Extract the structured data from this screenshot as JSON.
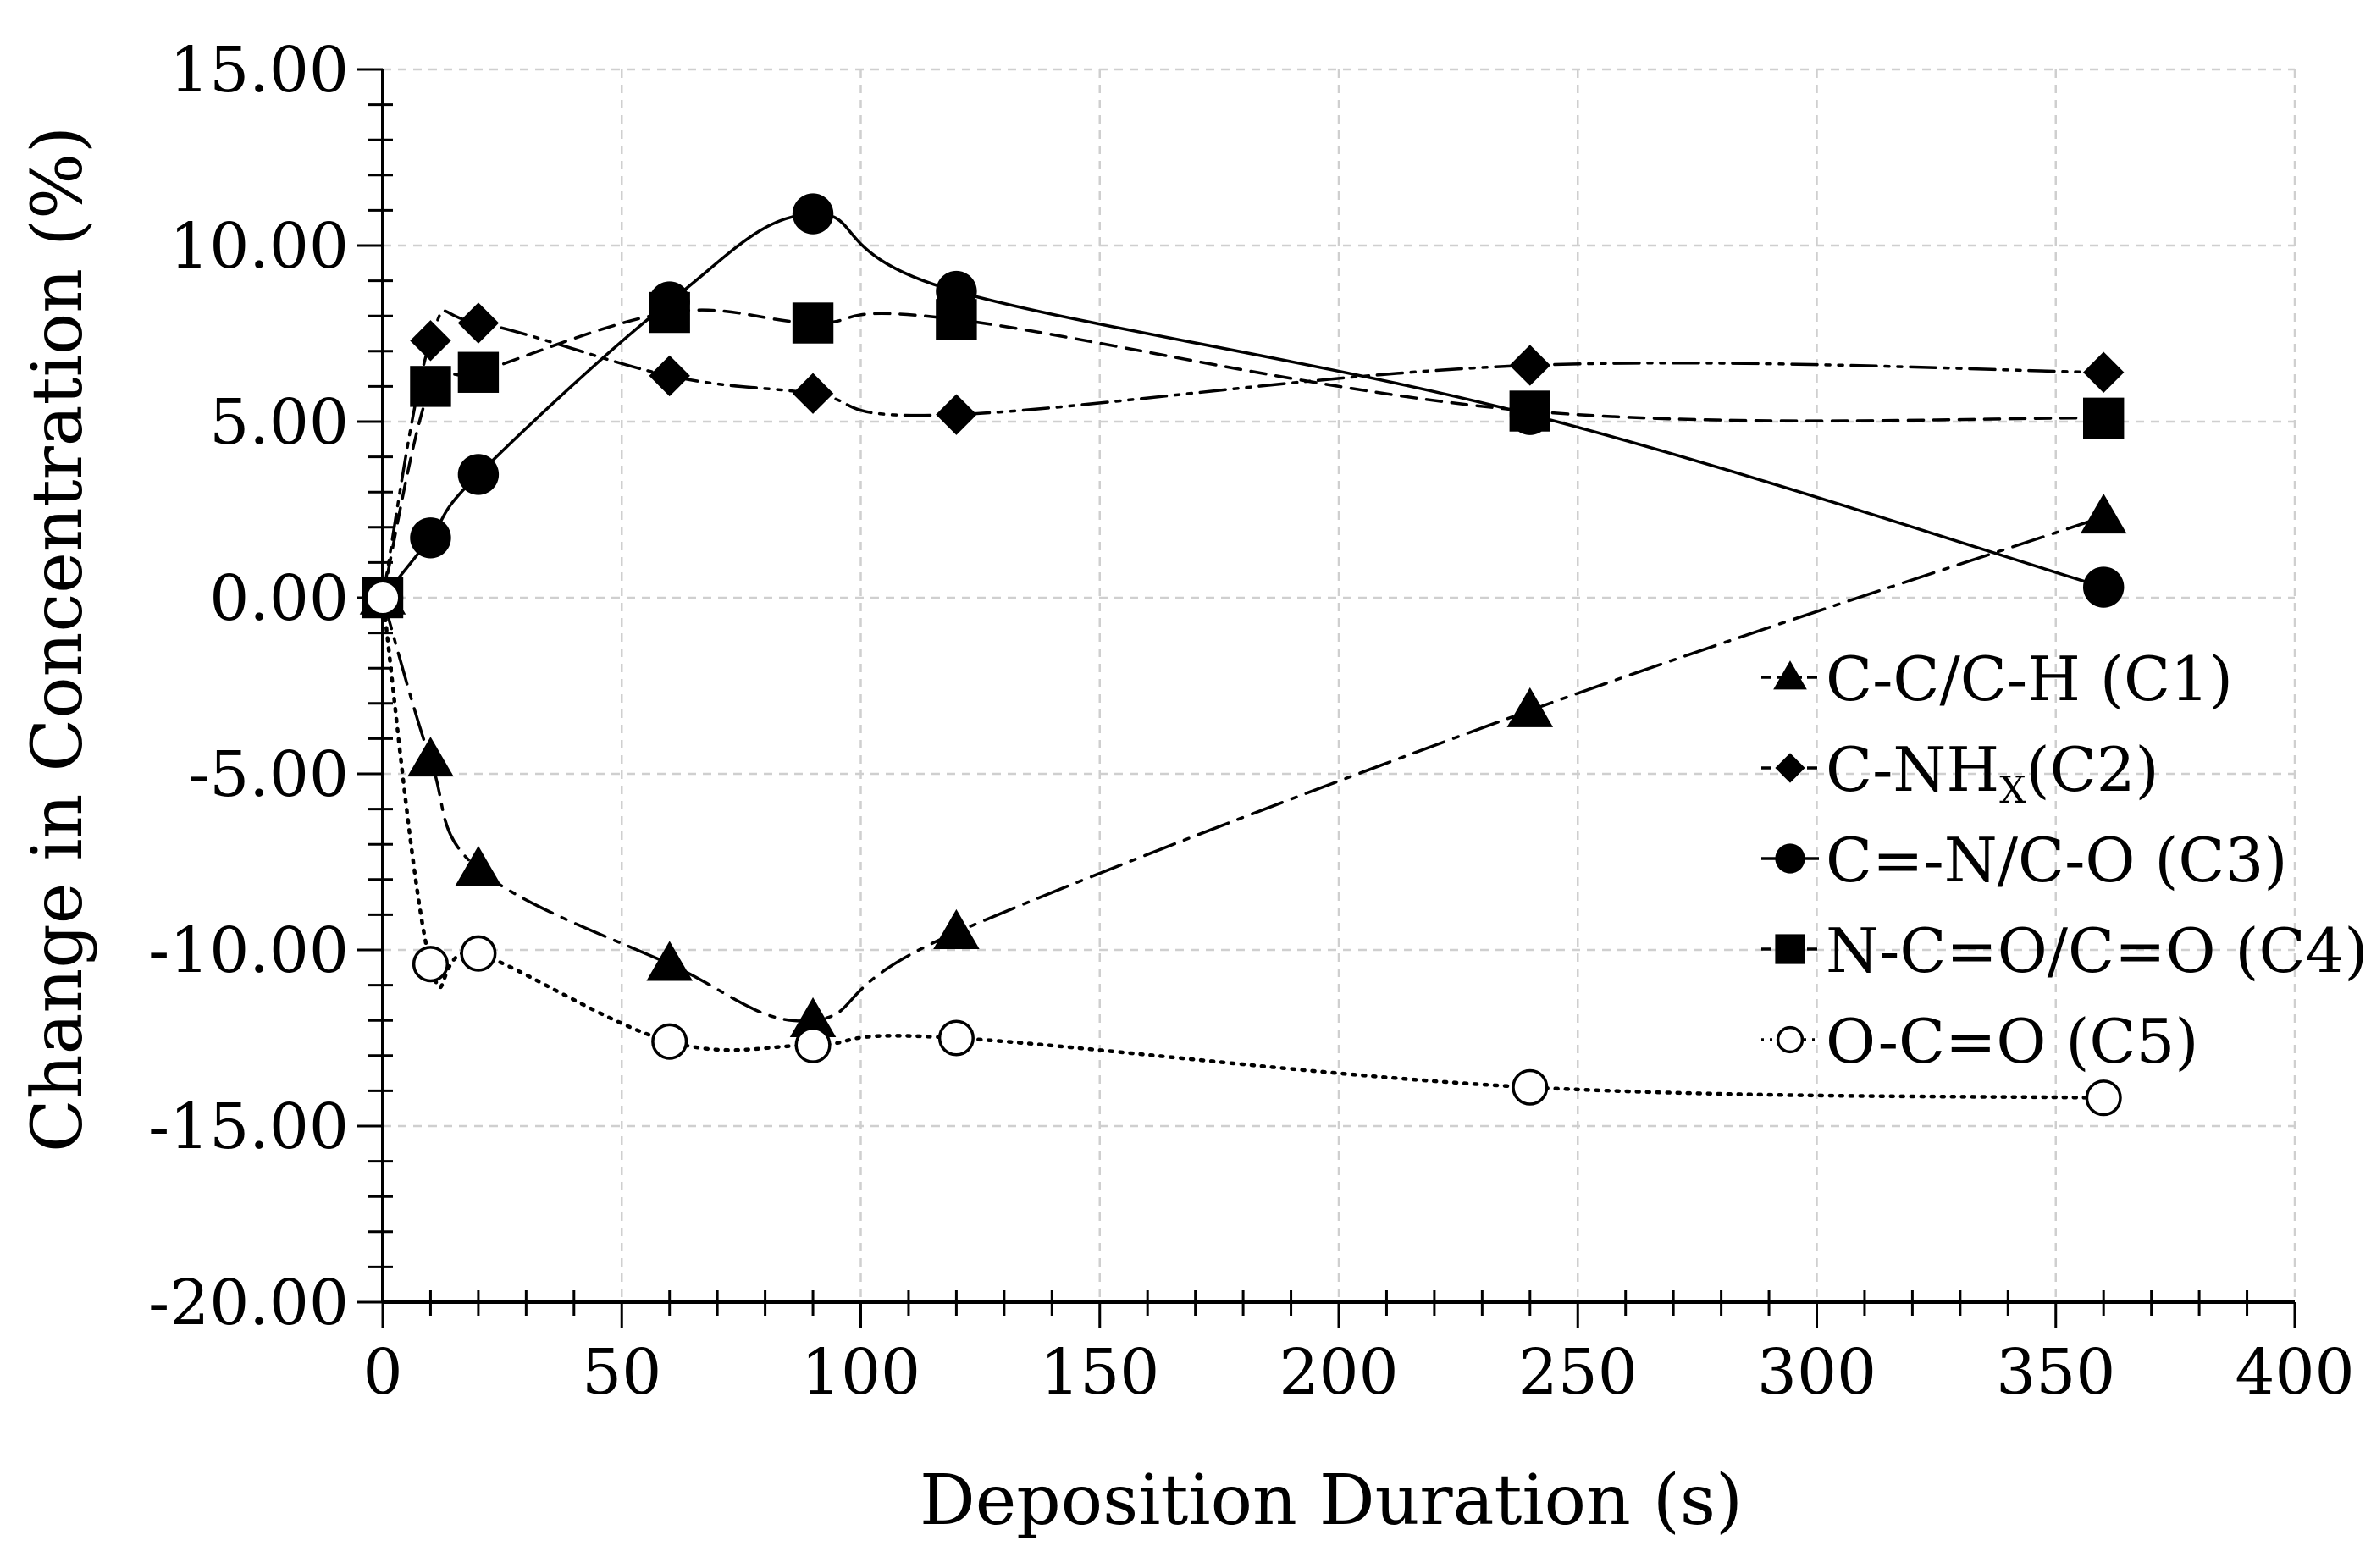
{
  "chart_data": {
    "type": "line",
    "title": "",
    "xlabel": "Deposition Duration (s)",
    "ylabel": "Change in Concentration (%)",
    "xlim": [
      0,
      400
    ],
    "ylim": [
      -20,
      15
    ],
    "x_ticks": [
      0,
      50,
      100,
      150,
      200,
      250,
      300,
      350,
      400
    ],
    "y_ticks": [
      15,
      10,
      5,
      0,
      -5,
      -10,
      -15,
      -20
    ],
    "x_tick_labels": [
      "0",
      "50",
      "100",
      "150",
      "200",
      "250",
      "300",
      "350",
      "400"
    ],
    "y_tick_labels": [
      "15.00",
      "10.00",
      "5.00",
      "0.00",
      "-5.00",
      "-10.00",
      "-15.00",
      "-20.00"
    ],
    "grid": true,
    "legend_position": "right-middle",
    "x": [
      0,
      10,
      20,
      60,
      90,
      120,
      240,
      360
    ],
    "series": [
      {
        "name": "C-C/C-H (C1)",
        "legend_main": "C-C/C-H (C1)",
        "legend_sub": "",
        "legend_tail": "",
        "marker": "triangle",
        "line": "dashdot",
        "values": [
          0,
          -4.6,
          -7.7,
          -10.4,
          -12.0,
          -9.5,
          -3.2,
          2.3
        ]
      },
      {
        "name": "C-NHx(C2)",
        "legend_main": "C-NH",
        "legend_sub": "X",
        "legend_tail": "(C2)",
        "marker": "diamond",
        "line": "dashdotdot",
        "values": [
          0,
          7.3,
          7.8,
          6.3,
          5.8,
          5.2,
          6.6,
          6.4
        ]
      },
      {
        "name": "C=-N/C-O (C3)",
        "legend_main": "C=-N/C-O (C3)",
        "legend_sub": "",
        "legend_tail": "",
        "marker": "circle",
        "line": "solid",
        "values": [
          0,
          1.7,
          3.5,
          8.4,
          10.9,
          8.7,
          5.2,
          0.3
        ]
      },
      {
        "name": "N-C=O/C=O (C4)",
        "legend_main": "N-C=O/C=O (C4)",
        "legend_sub": "",
        "legend_tail": "",
        "marker": "square",
        "line": "dashed",
        "values": [
          0,
          6.0,
          6.4,
          8.1,
          7.8,
          7.9,
          5.3,
          5.1
        ]
      },
      {
        "name": "O-C=O (C5)",
        "legend_main": "O-C=O (C5)",
        "legend_sub": "",
        "legend_tail": "",
        "marker": "open-circle",
        "line": "dotted",
        "values": [
          0,
          -10.4,
          -10.1,
          -12.6,
          -12.7,
          -12.5,
          -13.9,
          -14.2
        ]
      }
    ]
  }
}
